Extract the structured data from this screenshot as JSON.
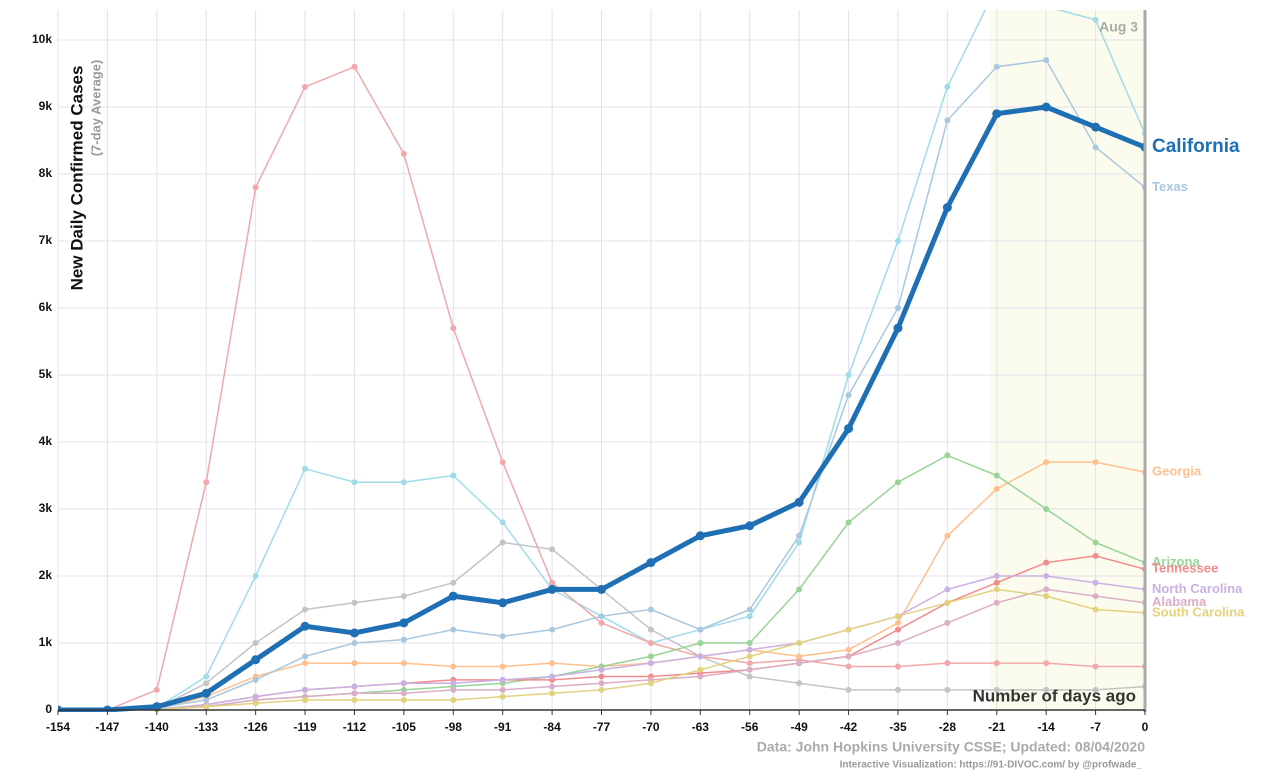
{
  "chart_data": {
    "type": "line",
    "ylabel": "New Daily Confirmed Cases",
    "ylabel_sub": "(7-day Average)",
    "annotation_date": "Aug 3",
    "xlabel": "Number of days ago",
    "source": "Data: John Hopkins University CSSE; Updated: 08/04/2020",
    "credit": "Interactive Visualization: https://91-DIVOC.com/ by @profwade_",
    "x": [
      -154,
      -147,
      -140,
      -133,
      -126,
      -119,
      -112,
      -105,
      -98,
      -91,
      -84,
      -77,
      -70,
      -63,
      -56,
      -49,
      -42,
      -35,
      -28,
      -21,
      -14,
      -7,
      0
    ],
    "xlim": [
      -154,
      0
    ],
    "xticks": [
      -154,
      -147,
      -140,
      -133,
      -126,
      -119,
      -112,
      -105,
      -98,
      -91,
      -84,
      -77,
      -70,
      -63,
      -56,
      -49,
      -42,
      -35,
      -28,
      -21,
      -14,
      -7,
      0
    ],
    "ylim": [
      0,
      10000
    ],
    "yticks": [
      0,
      {
        "value": 1000,
        "label": "1k"
      },
      {
        "value": 2000,
        "label": "2k"
      },
      {
        "value": 3000,
        "label": "3k"
      },
      {
        "value": 4000,
        "label": "4k"
      },
      {
        "value": 5000,
        "label": "5k"
      },
      {
        "value": 6000,
        "label": "6k"
      },
      {
        "value": 7000,
        "label": "7k"
      },
      {
        "value": 8000,
        "label": "8k"
      },
      {
        "value": 9000,
        "label": "9k"
      },
      {
        "value": 10000,
        "label": "10k"
      }
    ],
    "grid": true,
    "series": [
      {
        "color": "#9fdcea",
        "values": [
          0,
          0,
          30,
          500,
          2000,
          3600,
          3400,
          3400,
          3500,
          2800,
          1800,
          1400,
          1000,
          1200,
          1400,
          2500,
          5000,
          7000,
          9300,
          10800,
          10500,
          10300,
          8600
        ]
      },
      {
        "color": "#f2a8a8",
        "values": [
          0,
          0,
          300,
          3400,
          7800,
          9300,
          9600,
          8300,
          5700,
          3700,
          1900,
          1300,
          1000,
          800,
          700,
          750,
          650,
          650,
          700,
          700,
          700,
          650,
          650
        ]
      },
      {
        "color": "#c4c4c4",
        "values": [
          0,
          0,
          20,
          400,
          1000,
          1500,
          1600,
          1700,
          1900,
          2500,
          2400,
          1800,
          1200,
          800,
          500,
          400,
          300,
          300,
          300,
          300,
          300,
          300,
          350
        ]
      },
      {
        "name": "Georgia",
        "color": "#ffc08f",
        "values": [
          0,
          0,
          20,
          200,
          500,
          700,
          700,
          700,
          650,
          650,
          700,
          650,
          700,
          800,
          900,
          800,
          900,
          1300,
          2600,
          3300,
          3700,
          3700,
          3550
        ]
      },
      {
        "name": "Arizona",
        "color": "#98d498",
        "values": [
          0,
          0,
          5,
          50,
          150,
          200,
          250,
          300,
          350,
          400,
          500,
          650,
          800,
          1000,
          1000,
          1800,
          2800,
          3400,
          3800,
          3500,
          3000,
          2500,
          2200
        ]
      },
      {
        "name": "Tennessee",
        "color": "#f28c8c",
        "values": [
          0,
          0,
          10,
          80,
          200,
          300,
          350,
          400,
          450,
          450,
          450,
          500,
          500,
          550,
          600,
          700,
          800,
          1200,
          1600,
          1900,
          2200,
          2300,
          2100
        ]
      },
      {
        "name": "North Carolina",
        "color": "#cbb0e4",
        "values": [
          0,
          0,
          10,
          80,
          200,
          300,
          350,
          400,
          400,
          450,
          500,
          600,
          700,
          800,
          900,
          1000,
          1200,
          1400,
          1800,
          2000,
          2000,
          1900,
          1800
        ]
      },
      {
        "name": "Alabama",
        "color": "#dbaec6",
        "values": [
          0,
          0,
          5,
          50,
          150,
          200,
          250,
          250,
          300,
          300,
          350,
          400,
          450,
          500,
          600,
          700,
          800,
          1000,
          1300,
          1600,
          1800,
          1700,
          1600
        ]
      },
      {
        "name": "South Carolina",
        "color": "#e2d27e",
        "values": [
          0,
          0,
          5,
          50,
          100,
          150,
          150,
          150,
          150,
          200,
          250,
          300,
          400,
          600,
          800,
          1000,
          1200,
          1400,
          1600,
          1800,
          1700,
          1500,
          1450
        ]
      },
      {
        "name": "Texas",
        "color": "#a9c8df",
        "values": [
          0,
          0,
          30,
          150,
          450,
          800,
          1000,
          1050,
          1200,
          1100,
          1200,
          1400,
          1500,
          1200,
          1500,
          2600,
          4700,
          6000,
          8800,
          9600,
          9700,
          8400,
          7800
        ]
      },
      {
        "name": "California",
        "color": "#1f6fb4",
        "highlighted": true,
        "values": [
          0,
          0,
          50,
          250,
          750,
          1250,
          1150,
          1300,
          1700,
          1600,
          1800,
          1800,
          2200,
          2600,
          2750,
          3100,
          4200,
          5700,
          7500,
          8900,
          9000,
          8700,
          8400
        ]
      }
    ]
  }
}
